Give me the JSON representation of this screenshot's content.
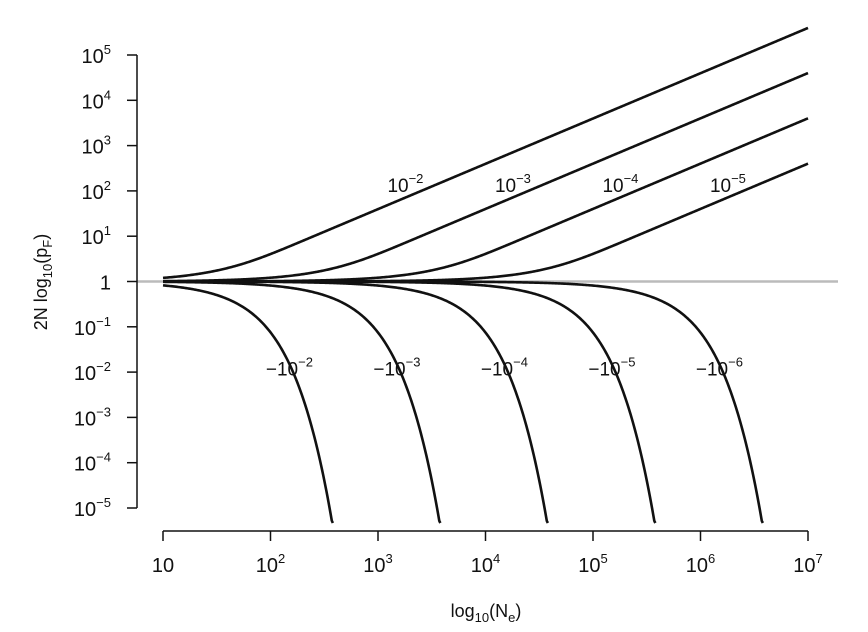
{
  "chart_data": {
    "type": "line",
    "xlabel": {
      "base": "log",
      "sub": "10",
      "paren_open": "(N",
      "sub2": "e",
      "paren_close": ")"
    },
    "ylabel": {
      "pre": "2N log",
      "sub": "10",
      "paren_open": "(p",
      "sub2": "F",
      "paren_close": ")"
    },
    "x_scale": "log",
    "y_scale": "log",
    "xlim": [
      10,
      10000000
    ],
    "ylim": [
      1e-05,
      100000
    ],
    "x_ticks": [
      {
        "value": 10,
        "base": "10",
        "exp": ""
      },
      {
        "value": 100,
        "base": "10",
        "exp": "2"
      },
      {
        "value": 1000,
        "base": "10",
        "exp": "3"
      },
      {
        "value": 10000,
        "base": "10",
        "exp": "4"
      },
      {
        "value": 100000,
        "base": "10",
        "exp": "5"
      },
      {
        "value": 1000000,
        "base": "10",
        "exp": "6"
      },
      {
        "value": 10000000,
        "base": "10",
        "exp": "7"
      }
    ],
    "y_ticks": [
      {
        "value": 100000,
        "base": "10",
        "exp": "5"
      },
      {
        "value": 10000,
        "base": "10",
        "exp": "4"
      },
      {
        "value": 1000,
        "base": "10",
        "exp": "3"
      },
      {
        "value": 100,
        "base": "10",
        "exp": "2"
      },
      {
        "value": 10,
        "base": "10",
        "exp": "1"
      },
      {
        "value": 1,
        "base": "1",
        "exp": ""
      },
      {
        "value": 0.1,
        "base": "10",
        "exp": "−1"
      },
      {
        "value": 0.01,
        "base": "10",
        "exp": "−2"
      },
      {
        "value": 0.001,
        "base": "10",
        "exp": "−3"
      },
      {
        "value": 0.0001,
        "base": "10",
        "exp": "−4"
      },
      {
        "value": 1e-05,
        "base": "10",
        "exp": "−5"
      }
    ],
    "reference_line": {
      "y": 1,
      "color": "#bbbbbb"
    },
    "line_color": "#111111",
    "series": [
      {
        "s": 0.01,
        "label_base": "10",
        "label_exp": "−2",
        "label_at": [
          1800,
          95
        ]
      },
      {
        "s": 0.001,
        "label_base": "10",
        "label_exp": "−3",
        "label_at": [
          18000,
          95
        ]
      },
      {
        "s": 0.0001,
        "label_base": "10",
        "label_exp": "−4",
        "label_at": [
          180000,
          95
        ]
      },
      {
        "s": 1e-05,
        "label_base": "10",
        "label_exp": "−5",
        "label_at": [
          1800000,
          95
        ]
      },
      {
        "s": -0.01,
        "label_base": "−10",
        "label_exp": "−2",
        "label_at": [
          150,
          0.0085
        ]
      },
      {
        "s": -0.001,
        "label_base": "−10",
        "label_exp": "−3",
        "label_at": [
          1500,
          0.0085
        ]
      },
      {
        "s": -0.0001,
        "label_base": "−10",
        "label_exp": "−4",
        "label_at": [
          15000,
          0.0085
        ]
      },
      {
        "s": -1e-05,
        "label_base": "−10",
        "label_exp": "−5",
        "label_at": [
          150000,
          0.0085
        ]
      },
      {
        "s": -1e-06,
        "label_base": "−10",
        "label_exp": "−6",
        "label_at": [
          1500000,
          0.0085
        ]
      }
    ]
  }
}
